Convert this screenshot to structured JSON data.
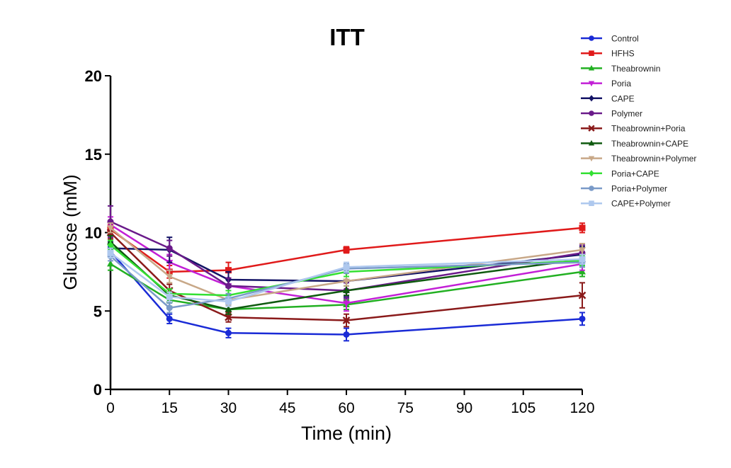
{
  "chart_data": {
    "type": "line",
    "title": "ITT",
    "xlabel": "Time (min)",
    "ylabel": "Glucose (mM)",
    "xlim": [
      0,
      120
    ],
    "ylim": [
      0,
      20
    ],
    "xticks": [
      0,
      15,
      30,
      45,
      60,
      75,
      90,
      105,
      120
    ],
    "yticks": [
      0,
      5,
      10,
      15,
      20
    ],
    "grid": false,
    "legend_position": "top-right",
    "x": [
      0,
      15,
      30,
      60,
      120
    ],
    "series": [
      {
        "name": "Control",
        "color": "#1a2bd6",
        "marker": "circle",
        "values": [
          8.8,
          4.5,
          3.6,
          3.5,
          4.5
        ],
        "errors": [
          0.3,
          0.3,
          0.3,
          0.4,
          0.4
        ]
      },
      {
        "name": "HFHS",
        "color": "#e01a1a",
        "marker": "square",
        "values": [
          10.2,
          7.5,
          7.6,
          8.9,
          10.3
        ],
        "errors": [
          0.3,
          0.4,
          0.5,
          0.2,
          0.3
        ]
      },
      {
        "name": "Theabrownin",
        "color": "#22b022",
        "marker": "triangle",
        "values": [
          8.0,
          5.7,
          5.1,
          5.4,
          7.5
        ],
        "errors": [
          0.4,
          0.4,
          0.3,
          0.3,
          0.3
        ]
      },
      {
        "name": "Poria",
        "color": "#c21fd6",
        "marker": "triangle-down",
        "values": [
          10.5,
          8.1,
          6.6,
          5.5,
          8.0
        ],
        "errors": [
          0.5,
          0.5,
          0.5,
          0.5,
          0.4
        ]
      },
      {
        "name": "CAPE",
        "color": "#141466",
        "marker": "diamond",
        "values": [
          9.0,
          8.9,
          7.0,
          6.9,
          8.6
        ],
        "errors": [
          0.4,
          0.8,
          0.5,
          1.0,
          0.5
        ]
      },
      {
        "name": "Polymer",
        "color": "#6a1a8a",
        "marker": "circle",
        "values": [
          10.7,
          9.0,
          6.6,
          6.3,
          8.7
        ],
        "errors": [
          1.0,
          0.5,
          0.5,
          0.5,
          0.5
        ]
      },
      {
        "name": "Theabrownin+Poria",
        "color": "#8a1a1a",
        "marker": "x",
        "values": [
          10.0,
          6.3,
          4.6,
          4.4,
          6.0
        ],
        "errors": [
          0.4,
          0.4,
          0.3,
          0.4,
          0.8
        ]
      },
      {
        "name": "Theabrownin+CAPE",
        "color": "#0f5a0f",
        "marker": "triangle",
        "values": [
          9.4,
          6.0,
          5.1,
          6.3,
          8.3
        ],
        "errors": [
          0.4,
          0.4,
          0.3,
          0.3,
          0.3
        ]
      },
      {
        "name": "Theabrownin+Polymer",
        "color": "#c8a888",
        "marker": "triangle-down",
        "values": [
          10.3,
          7.2,
          5.7,
          6.9,
          8.9
        ],
        "errors": [
          0.3,
          0.4,
          0.3,
          0.3,
          0.4
        ]
      },
      {
        "name": "Poria+CAPE",
        "color": "#33e033",
        "marker": "diamond",
        "values": [
          9.2,
          6.1,
          6.0,
          7.5,
          8.2
        ],
        "errors": [
          0.3,
          0.3,
          0.3,
          0.3,
          0.3
        ]
      },
      {
        "name": "Poria+Polymer",
        "color": "#7a9ac8",
        "marker": "circle",
        "values": [
          8.5,
          5.2,
          5.8,
          7.7,
          8.1
        ],
        "errors": [
          0.3,
          0.3,
          0.3,
          0.3,
          0.3
        ]
      },
      {
        "name": "CAPE+Polymer",
        "color": "#aec8ee",
        "marker": "square",
        "values": [
          8.7,
          5.9,
          5.6,
          7.8,
          8.3
        ],
        "errors": [
          0.3,
          0.3,
          0.3,
          0.3,
          0.3
        ]
      }
    ]
  }
}
